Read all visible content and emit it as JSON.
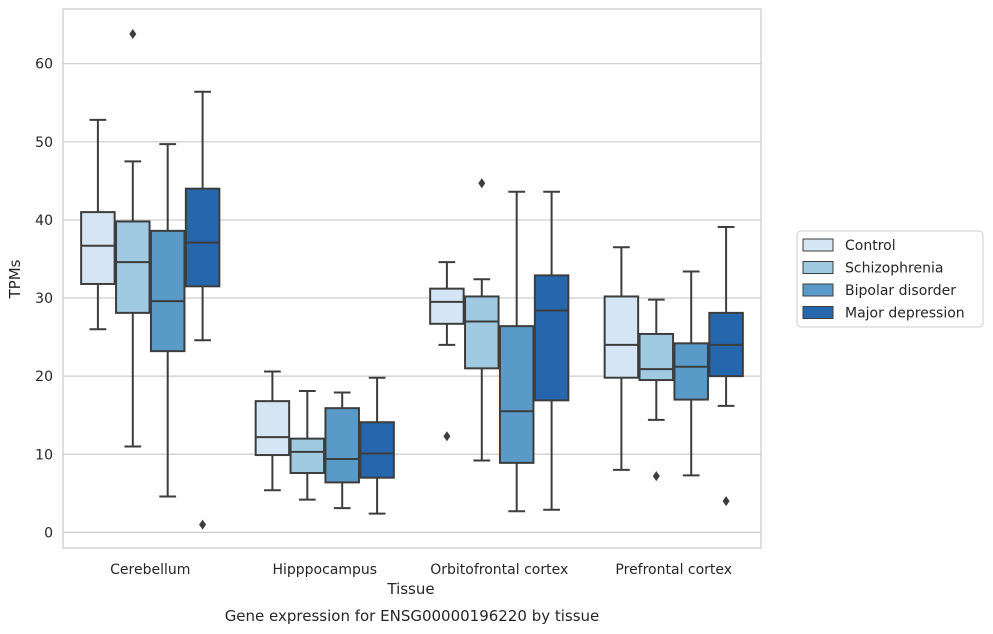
{
  "chart_data": {
    "type": "box",
    "title": "",
    "caption": "Gene expression for ENSG00000196220 by tissue",
    "xlabel": "Tissue",
    "ylabel": "TPMs",
    "ylim": [
      -2,
      67
    ],
    "yticks": [
      0,
      10,
      20,
      30,
      40,
      50,
      60
    ],
    "grid": "horizontal",
    "legend_position": "right",
    "categories": [
      "Cerebellum",
      "Hipppocampus",
      "Orbitofrontal cortex",
      "Prefrontal cortex"
    ],
    "series": [
      {
        "name": "Control",
        "color": "#d6e5f3",
        "boxes": [
          {
            "whislo": 26.0,
            "q1": 31.8,
            "med": 36.7,
            "q3": 41.0,
            "whishi": 52.8,
            "fliers": []
          },
          {
            "whislo": 5.4,
            "q1": 9.9,
            "med": 12.2,
            "q3": 16.8,
            "whishi": 20.6,
            "fliers": []
          },
          {
            "whislo": 24.0,
            "q1": 26.7,
            "med": 29.5,
            "q3": 31.2,
            "whishi": 34.6,
            "fliers": [
              12.3
            ]
          },
          {
            "whislo": 8.0,
            "q1": 19.8,
            "med": 24.0,
            "q3": 30.2,
            "whishi": 36.5,
            "fliers": []
          }
        ]
      },
      {
        "name": "Schizophrenia",
        "color": "#a0c9e2",
        "boxes": [
          {
            "whislo": 11.0,
            "q1": 28.1,
            "med": 34.6,
            "q3": 39.8,
            "whishi": 47.5,
            "fliers": [
              63.8
            ]
          },
          {
            "whislo": 4.2,
            "q1": 7.6,
            "med": 10.3,
            "q3": 12.0,
            "whishi": 18.1,
            "fliers": []
          },
          {
            "whislo": 9.2,
            "q1": 21.0,
            "med": 27.0,
            "q3": 30.2,
            "whishi": 32.4,
            "fliers": [
              44.7
            ]
          },
          {
            "whislo": 14.4,
            "q1": 19.5,
            "med": 20.9,
            "q3": 25.4,
            "whishi": 29.8,
            "fliers": [
              7.2
            ]
          }
        ]
      },
      {
        "name": "Bipolar disorder",
        "color": "#5a9ac9",
        "boxes": [
          {
            "whislo": 4.6,
            "q1": 23.2,
            "med": 29.6,
            "q3": 38.6,
            "whishi": 49.7,
            "fliers": []
          },
          {
            "whislo": 3.1,
            "q1": 6.4,
            "med": 9.4,
            "q3": 15.9,
            "whishi": 17.9,
            "fliers": []
          },
          {
            "whislo": 2.7,
            "q1": 8.9,
            "med": 15.5,
            "q3": 26.4,
            "whishi": 43.6,
            "fliers": []
          },
          {
            "whislo": 7.3,
            "q1": 17.0,
            "med": 21.2,
            "q3": 24.2,
            "whishi": 33.4,
            "fliers": []
          }
        ]
      },
      {
        "name": "Major depression",
        "color": "#2566ad",
        "boxes": [
          {
            "whislo": 24.6,
            "q1": 31.5,
            "med": 37.1,
            "q3": 44.0,
            "whishi": 56.4,
            "fliers": [
              1.0
            ]
          },
          {
            "whislo": 2.4,
            "q1": 7.0,
            "med": 10.1,
            "q3": 14.1,
            "whishi": 19.8,
            "fliers": []
          },
          {
            "whislo": 2.9,
            "q1": 16.9,
            "med": 28.4,
            "q3": 32.9,
            "whishi": 43.6,
            "fliers": []
          },
          {
            "whislo": 16.2,
            "q1": 20.0,
            "med": 24.0,
            "q3": 28.1,
            "whishi": 39.1,
            "fliers": [
              4.0
            ]
          }
        ]
      }
    ]
  }
}
